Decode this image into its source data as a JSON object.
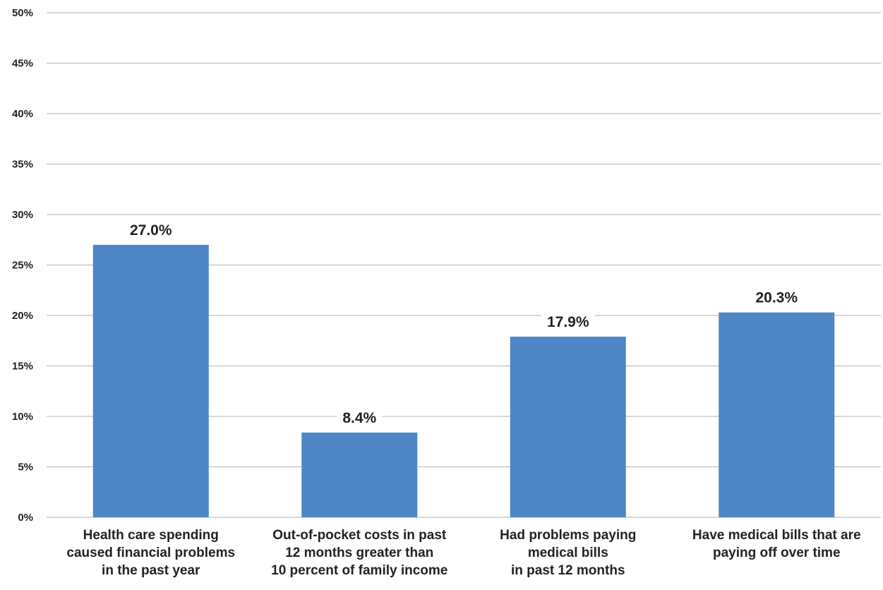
{
  "chart_data": {
    "type": "bar",
    "categories": [
      [
        "Health care spending",
        "caused financial problems",
        "in the past year"
      ],
      [
        "Out-of-pocket costs in past",
        "12 months greater than",
        "10 percent of family income"
      ],
      [
        "Had problems paying",
        "medical bills",
        "in past 12 months"
      ],
      [
        "Have medical bills that are",
        "paying off over time"
      ]
    ],
    "series": [
      {
        "values": [
          27.0,
          8.4,
          17.9,
          20.3
        ],
        "data_labels": [
          "27.0%",
          "8.4%",
          "17.9%",
          "20.3%"
        ]
      }
    ],
    "y_ticks": [
      "0%",
      "5%",
      "10%",
      "15%",
      "20%",
      "25%",
      "30%",
      "35%",
      "40%",
      "45%",
      "50%"
    ],
    "ylim": [
      0,
      50
    ],
    "y_unit": "%",
    "grid": true,
    "legend": "none",
    "colors": {
      "bar": "#4e86c6",
      "grid": "#c0c0c0",
      "text": "#222222",
      "label_background": "#ffffff"
    }
  }
}
